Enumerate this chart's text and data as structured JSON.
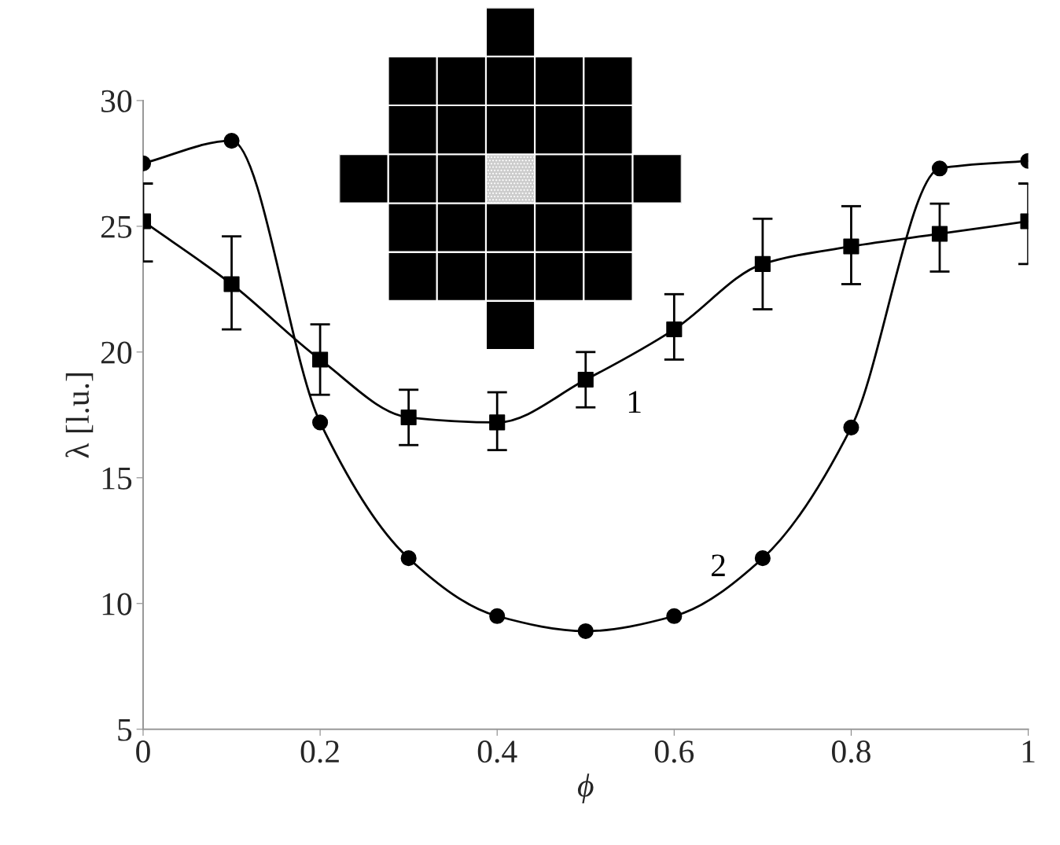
{
  "chart_data": {
    "type": "line",
    "xlabel": "ϕ",
    "ylabel": "λ [l.u.]",
    "x": [
      0,
      0.1,
      0.2,
      0.3,
      0.4,
      0.5,
      0.6,
      0.7,
      0.8,
      0.9,
      1
    ],
    "series": [
      {
        "name": "1",
        "color": "#000000",
        "marker": "square",
        "values": [
          25.2,
          22.7,
          19.7,
          17.4,
          17.2,
          18.9,
          20.9,
          23.5,
          24.2,
          24.7,
          25.2
        ],
        "errors": [
          [
            23.6,
            26.7
          ],
          [
            20.9,
            24.6
          ],
          [
            18.3,
            21.1
          ],
          [
            16.3,
            18.5
          ],
          [
            16.1,
            18.4
          ],
          [
            17.8,
            20.0
          ],
          [
            19.7,
            22.3
          ],
          [
            21.7,
            25.3
          ],
          [
            22.7,
            25.8
          ],
          [
            23.2,
            25.9
          ],
          [
            23.5,
            26.7
          ]
        ]
      },
      {
        "name": "2",
        "color": "#000000",
        "marker": "circle",
        "values": [
          27.5,
          28.4,
          17.2,
          11.8,
          9.5,
          8.9,
          9.5,
          11.8,
          17.0,
          27.3,
          27.6
        ]
      }
    ],
    "xlim": [
      0,
      1
    ],
    "xticks": [
      0,
      0.2,
      0.4,
      0.6,
      0.8,
      1
    ],
    "ylim": [
      5,
      30
    ],
    "yticks": [
      5,
      10,
      15,
      20,
      25,
      30
    ],
    "grid": false,
    "legend": false,
    "line_style": "solid"
  }
}
